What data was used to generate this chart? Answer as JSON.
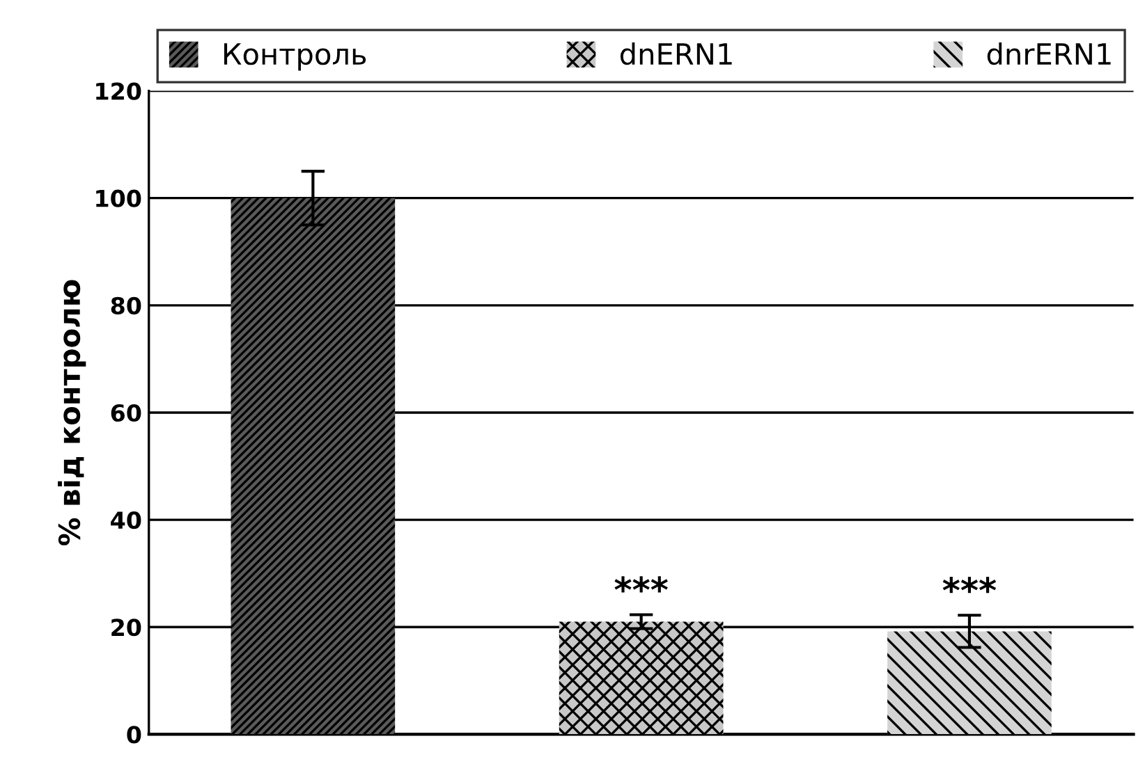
{
  "chart_data": {
    "type": "bar",
    "ylabel": "% від контролю",
    "categories": [
      null,
      null,
      null
    ],
    "series": [
      {
        "name": "Контроль",
        "color": "#5a5a5a",
        "values": [
          100,
          null,
          null
        ],
        "errors": [
          5,
          null,
          null
        ]
      },
      {
        "name": "dnERN1",
        "color": "#c8c8c8",
        "values": [
          null,
          21,
          null
        ],
        "errors": [
          null,
          1.3,
          null
        ]
      },
      {
        "name": "dnrERN1",
        "color": "#d4d4d4",
        "values": [
          null,
          null,
          19.2
        ],
        "errors": [
          null,
          null,
          3
        ]
      }
    ],
    "annotations": [
      "***",
      "***"
    ],
    "ylim": [
      0,
      120
    ],
    "yticks": [
      0,
      20,
      40,
      60,
      80,
      100,
      120
    ],
    "grid": "y",
    "legend": "top"
  }
}
